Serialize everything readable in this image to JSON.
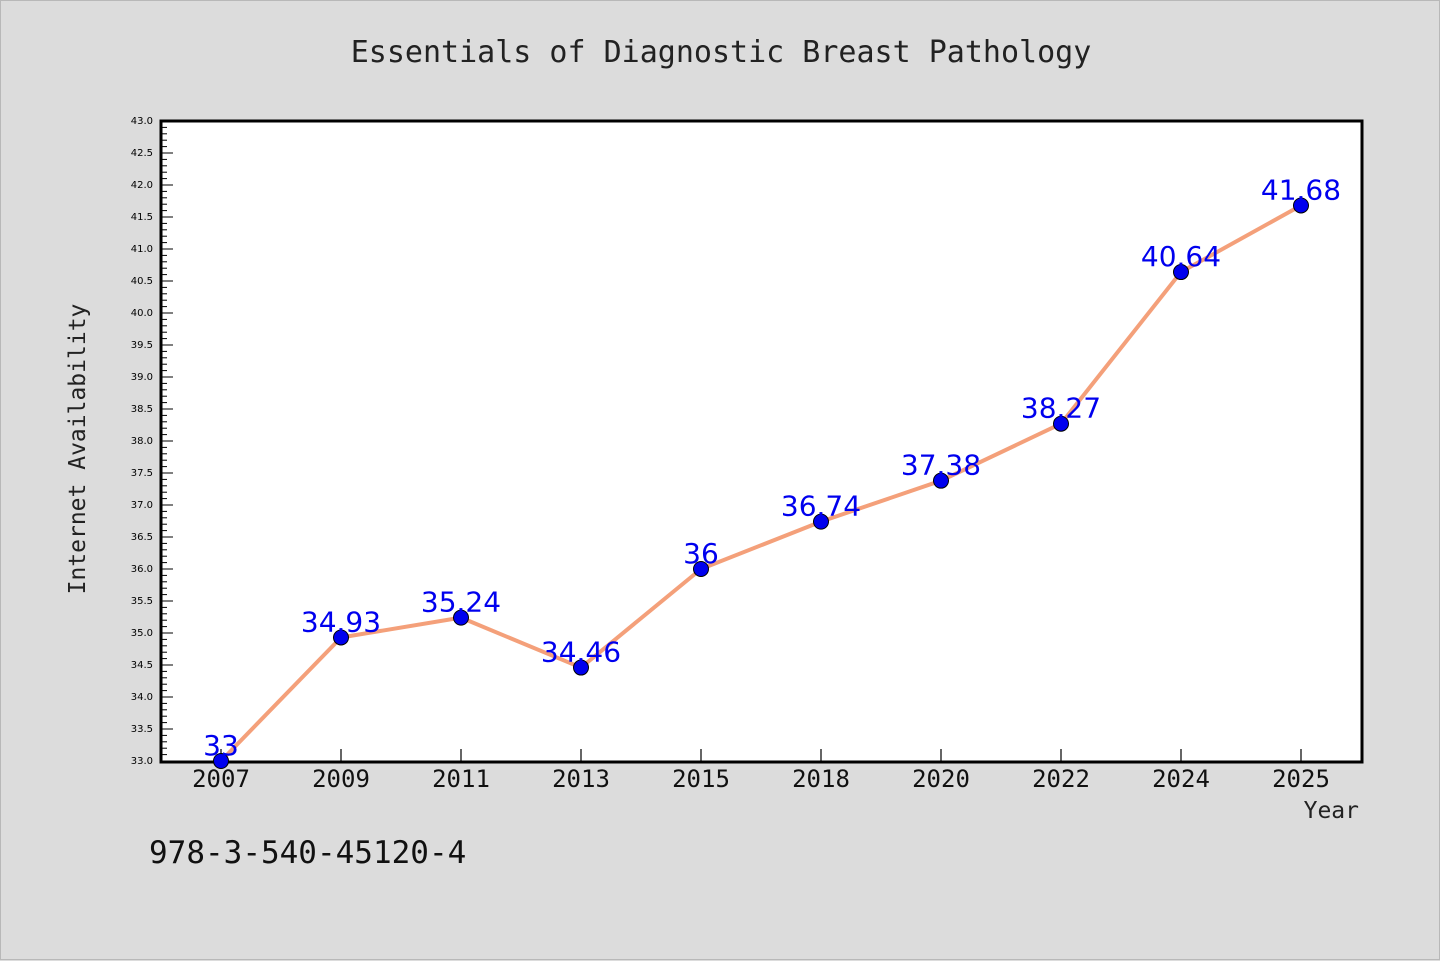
{
  "figure": {
    "background": "#dcdcdc",
    "footer_text": "978-3-540-45120-4"
  },
  "chart_data": {
    "type": "line",
    "title": "Essentials of Diagnostic Breast Pathology",
    "xlabel": "Year",
    "ylabel": "Internet Availability",
    "categories": [
      "2007",
      "2009",
      "2011",
      "2013",
      "2015",
      "2018",
      "2020",
      "2022",
      "2024",
      "2025"
    ],
    "series": [
      {
        "values": [
          33,
          34.93,
          35.24,
          34.46,
          36,
          36.74,
          37.38,
          38.27,
          40.64,
          41.68
        ],
        "labels": [
          "33",
          "34.93",
          "35.24",
          "34.46",
          "36",
          "36.74",
          "37.38",
          "38.27",
          "40.64",
          "41.68"
        ],
        "line_color": "#f4a07a",
        "marker_color": "#0000ee"
      }
    ],
    "ylim": [
      33.0,
      43.0
    ],
    "yticks": [
      "33.0",
      "33.5",
      "34.0",
      "34.5",
      "35.0",
      "35.5",
      "36.0",
      "36.5",
      "37.0",
      "37.5",
      "38.0",
      "38.5",
      "39.0",
      "39.5",
      "40.0",
      "40.5",
      "41.0",
      "41.5",
      "42.0",
      "42.5",
      "43.0"
    ],
    "data_label_color": "#0000ee",
    "grid": false,
    "legend": "none"
  }
}
